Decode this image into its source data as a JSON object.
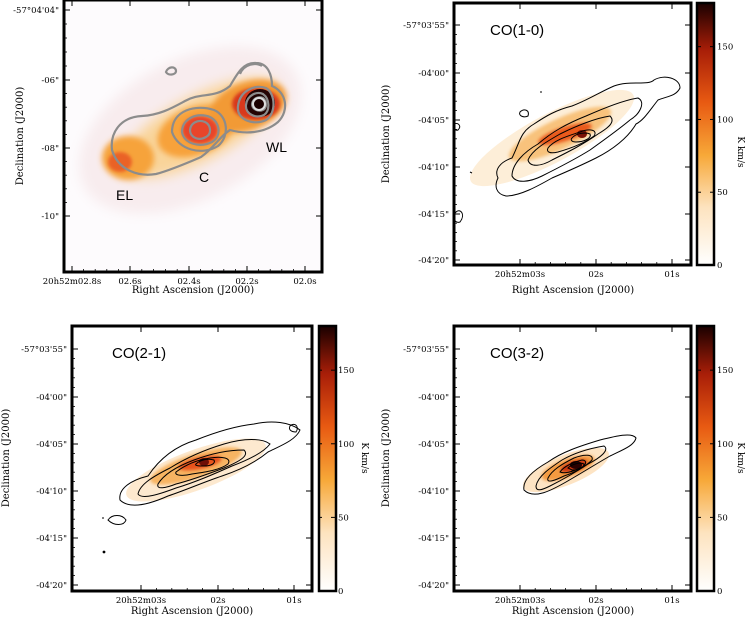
{
  "chart_data": [
    {
      "type": "heatmap",
      "id": "continuum",
      "title": "",
      "xlabel": "Right Ascension (J2000)",
      "ylabel": "Declination (J2000)",
      "x_ticks": [
        "20h52m02.8s",
        "02.6s",
        "02.4s",
        "02.2s",
        "02.0s"
      ],
      "y_ticks": [
        "-57°04'04\"",
        "-06\"",
        "-08\"",
        "-10\""
      ],
      "region_labels": [
        "EL",
        "C",
        "WL"
      ],
      "colormap": "white-orange-red-black",
      "colorbar": false
    },
    {
      "type": "heatmap",
      "id": "co10",
      "title": "CO(1-0)",
      "xlabel": "Right Ascension (J2000)",
      "ylabel": "Declination (J2000)",
      "x_ticks": [
        "20h52m03s",
        "02s",
        "01s"
      ],
      "y_ticks": [
        "-57°03'55\"",
        "-04'00\"",
        "-04'05\"",
        "-04'10\"",
        "-04'15\"",
        "-04'20\""
      ],
      "colorbar": {
        "label": "K km/s",
        "range": [
          0,
          180
        ],
        "ticks": [
          "0",
          "50",
          "100",
          "150"
        ]
      }
    },
    {
      "type": "heatmap",
      "id": "co21",
      "title": "CO(2-1)",
      "xlabel": "Right Ascension (J2000)",
      "ylabel": "Declination (J2000)",
      "x_ticks": [
        "20h52m03s",
        "02s",
        "01s"
      ],
      "y_ticks": [
        "-57°03'55\"",
        "-04'00\"",
        "-04'05\"",
        "-04'10\"",
        "-04'15\"",
        "-04'20\""
      ],
      "colorbar": {
        "label": "K km/s",
        "range": [
          0,
          180
        ],
        "ticks": [
          "0",
          "50",
          "100",
          "150"
        ]
      }
    },
    {
      "type": "heatmap",
      "id": "co32",
      "title": "CO(3-2)",
      "xlabel": "Right Ascension (J2000)",
      "ylabel": "Declination (J2000)",
      "x_ticks": [
        "20h52m03s",
        "02s",
        "01s"
      ],
      "y_ticks": [
        "-57°03'55\"",
        "-04'00\"",
        "-04'05\"",
        "-04'10\"",
        "-04'15\"",
        "-04'20\""
      ],
      "colorbar": {
        "label": "K km/s",
        "range": [
          0,
          180
        ],
        "ticks": [
          "0",
          "50",
          "100",
          "150"
        ]
      }
    }
  ]
}
